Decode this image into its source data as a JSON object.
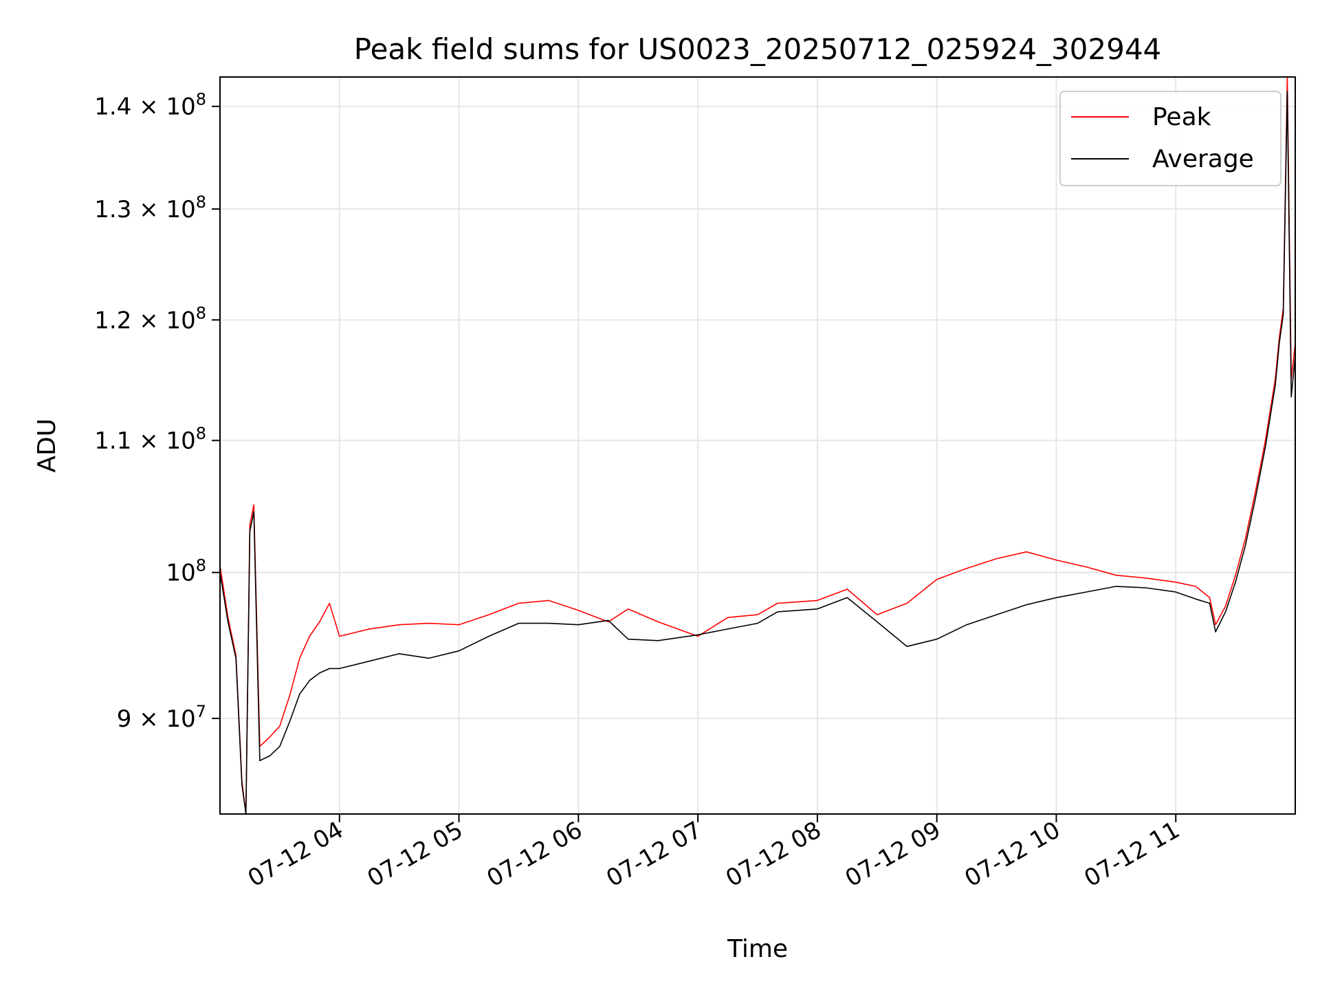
{
  "chart_data": {
    "type": "line",
    "title": "Peak field sums for US0023_20250712_025924_302944",
    "xlabel": "Time",
    "ylabel": "ADU",
    "x_axis_kind": "time",
    "xlim": [
      "2025-07-12T03:00",
      "2025-07-12T12:00"
    ],
    "ylim": [
      84000000,
      143000000
    ],
    "y_scale": "log",
    "grid": true,
    "legend_position": "top-right",
    "x_ticks": [
      {
        "value": "2025-07-12T04:00",
        "label": "07-12 04"
      },
      {
        "value": "2025-07-12T05:00",
        "label": "07-12 05"
      },
      {
        "value": "2025-07-12T06:00",
        "label": "07-12 06"
      },
      {
        "value": "2025-07-12T07:00",
        "label": "07-12 07"
      },
      {
        "value": "2025-07-12T08:00",
        "label": "07-12 08"
      },
      {
        "value": "2025-07-12T09:00",
        "label": "07-12 09"
      },
      {
        "value": "2025-07-12T10:00",
        "label": "07-12 10"
      },
      {
        "value": "2025-07-12T11:00",
        "label": "07-12 11"
      }
    ],
    "y_ticks": [
      {
        "value": 90000000,
        "mantissa": "9",
        "exponent": "7"
      },
      {
        "value": 100000000,
        "mantissa": "",
        "exponent": "8"
      },
      {
        "value": 110000000,
        "mantissa": "1.1",
        "exponent": "8"
      },
      {
        "value": 120000000,
        "mantissa": "1.2",
        "exponent": "8"
      },
      {
        "value": 130000000,
        "mantissa": "1.3",
        "exponent": "8"
      },
      {
        "value": 140000000,
        "mantissa": "1.4",
        "exponent": "8"
      }
    ],
    "series": [
      {
        "name": "Peak",
        "color": "#ff0000",
        "x": [
          "2025-07-12T03:00",
          "2025-07-12T03:04",
          "2025-07-12T03:08",
          "2025-07-12T03:11",
          "2025-07-12T03:13",
          "2025-07-12T03:15",
          "2025-07-12T03:17",
          "2025-07-12T03:20",
          "2025-07-12T03:25",
          "2025-07-12T03:30",
          "2025-07-12T03:35",
          "2025-07-12T03:40",
          "2025-07-12T03:45",
          "2025-07-12T03:50",
          "2025-07-12T03:55",
          "2025-07-12T04:00",
          "2025-07-12T04:15",
          "2025-07-12T04:30",
          "2025-07-12T04:45",
          "2025-07-12T05:00",
          "2025-07-12T05:15",
          "2025-07-12T05:30",
          "2025-07-12T05:45",
          "2025-07-12T06:00",
          "2025-07-12T06:15",
          "2025-07-12T06:25",
          "2025-07-12T06:40",
          "2025-07-12T07:00",
          "2025-07-12T07:15",
          "2025-07-12T07:30",
          "2025-07-12T07:40",
          "2025-07-12T08:00",
          "2025-07-12T08:15",
          "2025-07-12T08:30",
          "2025-07-12T08:45",
          "2025-07-12T09:00",
          "2025-07-12T09:15",
          "2025-07-12T09:30",
          "2025-07-12T09:45",
          "2025-07-12T10:00",
          "2025-07-12T10:15",
          "2025-07-12T10:30",
          "2025-07-12T10:45",
          "2025-07-12T11:00",
          "2025-07-12T11:10",
          "2025-07-12T11:17",
          "2025-07-12T11:20",
          "2025-07-12T11:25",
          "2025-07-12T11:30",
          "2025-07-12T11:35",
          "2025-07-12T11:40",
          "2025-07-12T11:45",
          "2025-07-12T11:50",
          "2025-07-12T11:52",
          "2025-07-12T11:54",
          "2025-07-12T11:56",
          "2025-07-12T11:58",
          "2025-07-12T12:00"
        ],
        "y": [
          100500000,
          96800000,
          94200000,
          86000000,
          84000000,
          103500000,
          105000000,
          88200000,
          88800000,
          89500000,
          91500000,
          94000000,
          95500000,
          96500000,
          97800000,
          95500000,
          96000000,
          96300000,
          96400000,
          96300000,
          97000000,
          97800000,
          98000000,
          97300000,
          96500000,
          97400000,
          96500000,
          95500000,
          96800000,
          97000000,
          97800000,
          98000000,
          98800000,
          97000000,
          97800000,
          99500000,
          100300000,
          101000000,
          101500000,
          100900000,
          100400000,
          99800000,
          99600000,
          99300000,
          99000000,
          98200000,
          96300000,
          97600000,
          99800000,
          102500000,
          106000000,
          110000000,
          115000000,
          118500000,
          121000000,
          143000000,
          115000000,
          118000000
        ]
      },
      {
        "name": "Average",
        "color": "#000000",
        "x": [
          "2025-07-12T03:00",
          "2025-07-12T03:04",
          "2025-07-12T03:08",
          "2025-07-12T03:11",
          "2025-07-12T03:13",
          "2025-07-12T03:15",
          "2025-07-12T03:17",
          "2025-07-12T03:20",
          "2025-07-12T03:25",
          "2025-07-12T03:30",
          "2025-07-12T03:35",
          "2025-07-12T03:40",
          "2025-07-12T03:45",
          "2025-07-12T03:50",
          "2025-07-12T03:55",
          "2025-07-12T04:00",
          "2025-07-12T04:15",
          "2025-07-12T04:30",
          "2025-07-12T04:45",
          "2025-07-12T05:00",
          "2025-07-12T05:15",
          "2025-07-12T05:30",
          "2025-07-12T05:45",
          "2025-07-12T06:00",
          "2025-07-12T06:15",
          "2025-07-12T06:25",
          "2025-07-12T06:40",
          "2025-07-12T07:00",
          "2025-07-12T07:15",
          "2025-07-12T07:30",
          "2025-07-12T07:40",
          "2025-07-12T08:00",
          "2025-07-12T08:15",
          "2025-07-12T08:30",
          "2025-07-12T08:45",
          "2025-07-12T09:00",
          "2025-07-12T09:15",
          "2025-07-12T09:30",
          "2025-07-12T09:45",
          "2025-07-12T10:00",
          "2025-07-12T10:15",
          "2025-07-12T10:30",
          "2025-07-12T10:45",
          "2025-07-12T11:00",
          "2025-07-12T11:10",
          "2025-07-12T11:17",
          "2025-07-12T11:20",
          "2025-07-12T11:25",
          "2025-07-12T11:30",
          "2025-07-12T11:35",
          "2025-07-12T11:40",
          "2025-07-12T11:45",
          "2025-07-12T11:50",
          "2025-07-12T11:52",
          "2025-07-12T11:54",
          "2025-07-12T11:56",
          "2025-07-12T11:58",
          "2025-07-12T12:00"
        ],
        "y": [
          100000000,
          96500000,
          94000000,
          85800000,
          84000000,
          103000000,
          104500000,
          87300000,
          87600000,
          88200000,
          89800000,
          91600000,
          92500000,
          93000000,
          93300000,
          93300000,
          93800000,
          94300000,
          94000000,
          94500000,
          95500000,
          96400000,
          96400000,
          96300000,
          96600000,
          95300000,
          95200000,
          95600000,
          96000000,
          96400000,
          97200000,
          97400000,
          98200000,
          96500000,
          94800000,
          95300000,
          96300000,
          97000000,
          97700000,
          98200000,
          98600000,
          99000000,
          98900000,
          98600000,
          98100000,
          97800000,
          95800000,
          97200000,
          99300000,
          102000000,
          105500000,
          109500000,
          114500000,
          118000000,
          120500000,
          141500000,
          113500000,
          117000000
        ]
      }
    ]
  }
}
